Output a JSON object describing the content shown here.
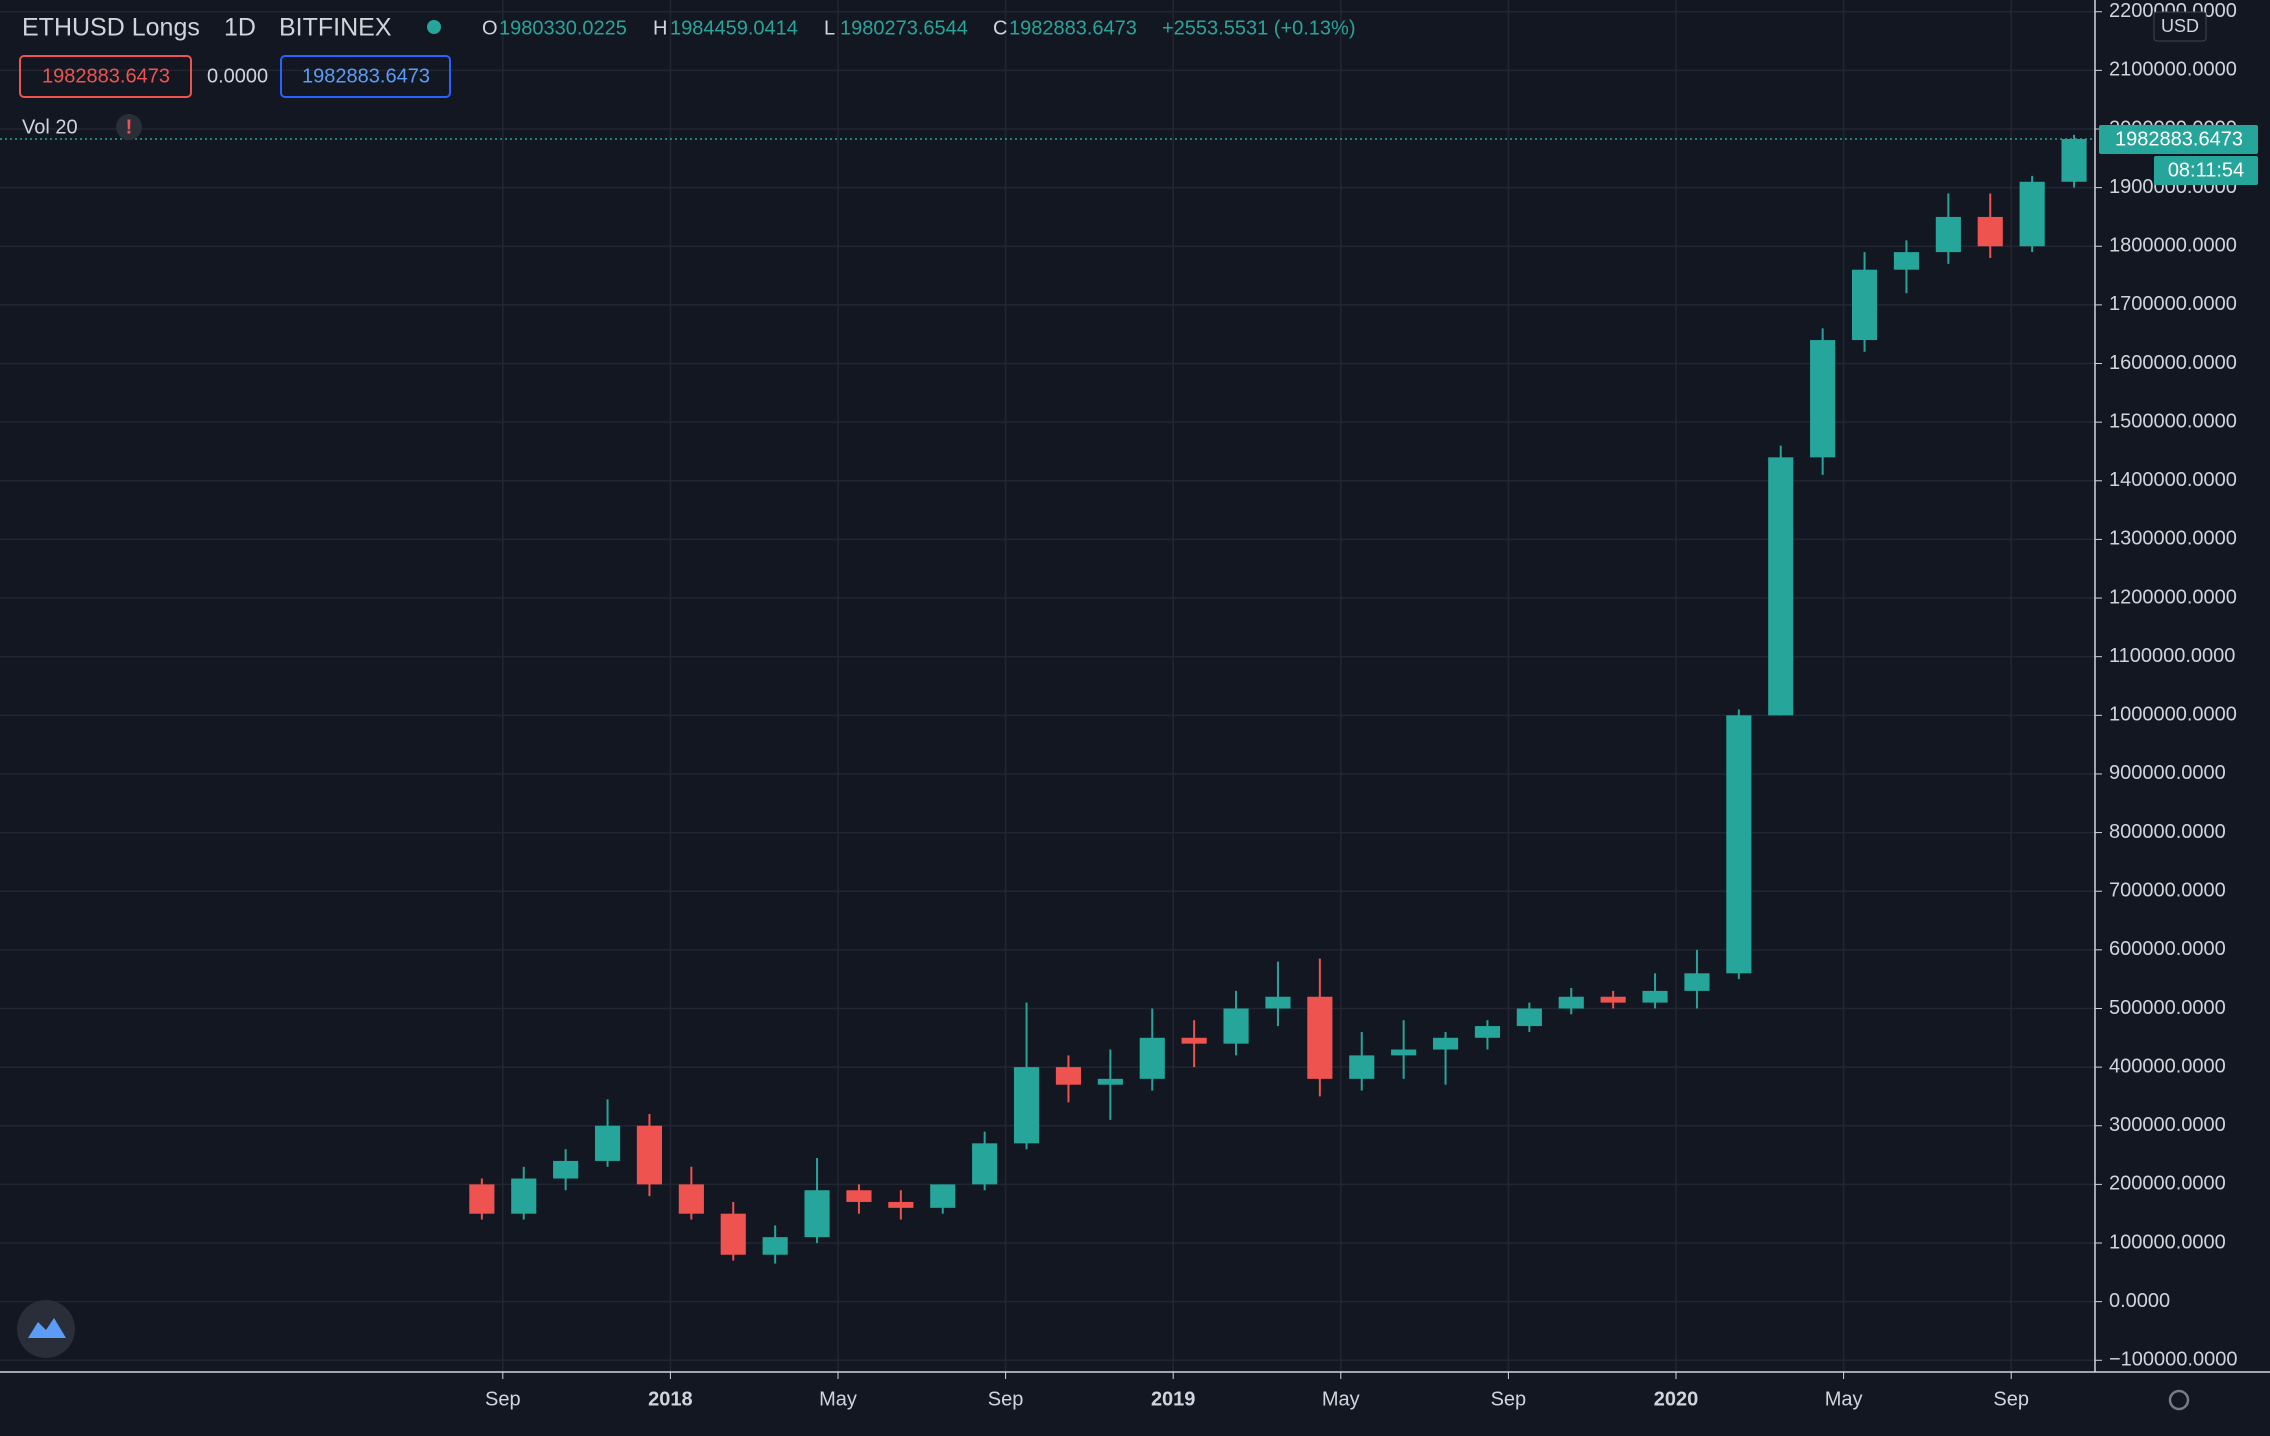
{
  "header": {
    "symbol": "ETHUSD Longs",
    "interval": "1D",
    "exchange": "BITFINEX",
    "o_label": "O",
    "o": "1980330.0225",
    "h_label": "H",
    "h": "1984459.0414",
    "l_label": "L",
    "l": "1980273.6544",
    "c_label": "C",
    "c": "1982883.6473",
    "change": "+2553.5531 (+0.13%)",
    "sell": "1982883.6473",
    "spread": "0.0000",
    "buy": "1982883.6473",
    "indicator": "Vol 20",
    "warning": "!"
  },
  "axis_badge": {
    "currency": "USD",
    "last_price": "1982883.6473",
    "countdown": "08:11:54"
  },
  "chart_data": {
    "type": "candlestick",
    "up_color": "#26a69a",
    "down_color": "#ef5350",
    "grid": true,
    "open": [
      200000,
      150000,
      210000,
      240000,
      300000,
      200000,
      150000,
      80000,
      110000,
      190000,
      170000,
      160000,
      200000,
      270000,
      400000,
      370000,
      380000,
      450000,
      440000,
      500000,
      520000,
      380000,
      420000,
      430000,
      450000,
      470000,
      500000,
      520000,
      510000,
      530000,
      560000,
      1000000,
      1440000,
      1640000,
      1760000,
      1790000,
      1850000,
      1800000,
      1910000
    ],
    "high": [
      210000,
      230000,
      260000,
      345000,
      320000,
      230000,
      170000,
      130000,
      245000,
      200000,
      190000,
      200000,
      290000,
      510000,
      420000,
      430000,
      500000,
      480000,
      530000,
      580000,
      585000,
      460000,
      480000,
      460000,
      480000,
      510000,
      535000,
      530000,
      560000,
      600000,
      1010000,
      1460000,
      1660000,
      1790000,
      1810000,
      1890000,
      1890000,
      1920000,
      1990000
    ],
    "low": [
      140000,
      140000,
      190000,
      230000,
      180000,
      140000,
      70000,
      65000,
      100000,
      150000,
      140000,
      150000,
      190000,
      260000,
      340000,
      310000,
      360000,
      400000,
      420000,
      470000,
      350000,
      360000,
      380000,
      370000,
      430000,
      460000,
      490000,
      500000,
      500000,
      500000,
      550000,
      1000000,
      1410000,
      1620000,
      1720000,
      1770000,
      1780000,
      1790000,
      1900000
    ],
    "close": [
      150000,
      210000,
      240000,
      300000,
      200000,
      150000,
      80000,
      110000,
      190000,
      170000,
      160000,
      200000,
      270000,
      400000,
      370000,
      380000,
      450000,
      440000,
      500000,
      520000,
      380000,
      420000,
      430000,
      450000,
      470000,
      500000,
      520000,
      510000,
      530000,
      560000,
      1000000,
      1440000,
      1640000,
      1760000,
      1790000,
      1850000,
      1800000,
      1910000,
      1982883.6473
    ],
    "xlim": [
      -11.5,
      38.5
    ],
    "xticks": [
      {
        "value": 0.5,
        "label": "Sep"
      },
      {
        "value": 4.5,
        "label": "2018"
      },
      {
        "value": 8.5,
        "label": "May"
      },
      {
        "value": 12.5,
        "label": "Sep"
      },
      {
        "value": 16.5,
        "label": "2019"
      },
      {
        "value": 20.5,
        "label": "May"
      },
      {
        "value": 24.5,
        "label": "Sep"
      },
      {
        "value": 28.5,
        "label": "2020"
      },
      {
        "value": 32.5,
        "label": "May"
      },
      {
        "value": 36.5,
        "label": "Sep"
      }
    ],
    "ylim": [
      -120000,
      2220000
    ],
    "yticks": [
      {
        "value": -100000,
        "label": "−100000.0000"
      },
      {
        "value": 0,
        "label": "0.0000"
      },
      {
        "value": 100000,
        "label": "100000.0000"
      },
      {
        "value": 200000,
        "label": "200000.0000"
      },
      {
        "value": 300000,
        "label": "300000.0000"
      },
      {
        "value": 400000,
        "label": "400000.0000"
      },
      {
        "value": 500000,
        "label": "500000.0000"
      },
      {
        "value": 600000,
        "label": "600000.0000"
      },
      {
        "value": 700000,
        "label": "700000.0000"
      },
      {
        "value": 800000,
        "label": "800000.0000"
      },
      {
        "value": 900000,
        "label": "900000.0000"
      },
      {
        "value": 1000000,
        "label": "1000000.0000"
      },
      {
        "value": 1100000,
        "label": "1100000.0000"
      },
      {
        "value": 1200000,
        "label": "1200000.0000"
      },
      {
        "value": 1300000,
        "label": "1300000.0000"
      },
      {
        "value": 1400000,
        "label": "1400000.0000"
      },
      {
        "value": 1500000,
        "label": "1500000.0000"
      },
      {
        "value": 1600000,
        "label": "1600000.0000"
      },
      {
        "value": 1700000,
        "label": "1700000.0000"
      },
      {
        "value": 1800000,
        "label": "1800000.0000"
      },
      {
        "value": 1900000,
        "label": "1900000.0000"
      },
      {
        "value": 2000000,
        "label": "2000000.0000"
      },
      {
        "value": 2100000,
        "label": "2100000.0000"
      },
      {
        "value": 2200000,
        "label": "2200000.0000"
      }
    ]
  }
}
